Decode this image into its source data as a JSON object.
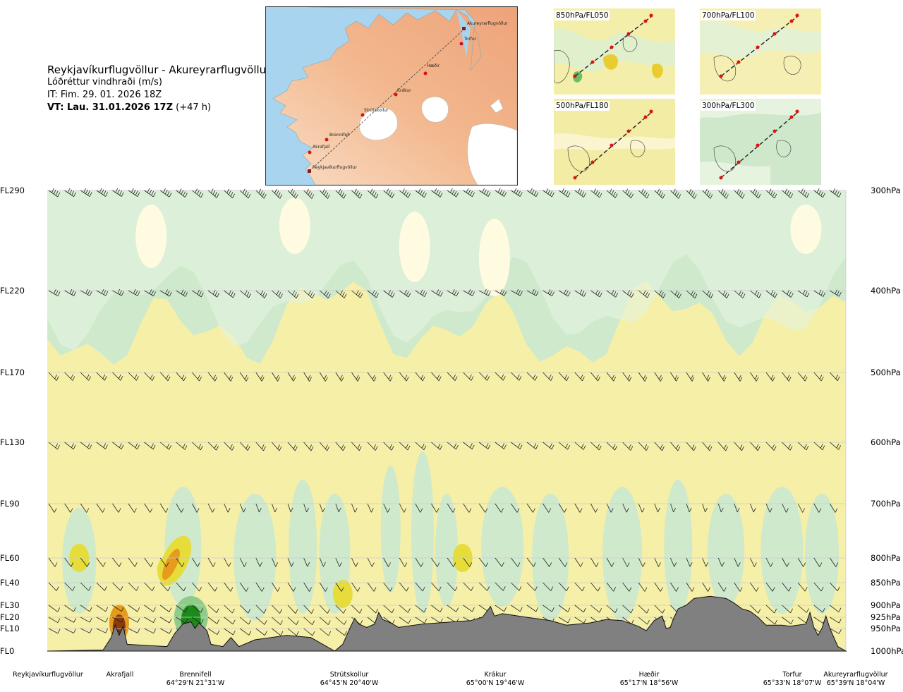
{
  "header": {
    "title": "Reykjavíkurflugvöllur - Akureyrarflugvöllur",
    "subtitle": "Lóðréttur vindhraði (m/s)",
    "init_time": "IT: Fim. 29. 01. 2026 18Z",
    "valid_time": "VT: Lau. 31.01.2026 17Z",
    "lead": "(+47 h)"
  },
  "map": {
    "route_labels": [
      "Akureyrarflugvöllur",
      "Torfur",
      "Hæðir",
      "Krákur",
      "Strútskollur",
      "Brennifell",
      "Akrafjall",
      "Reykjavíkurflugvöllur"
    ]
  },
  "mini_maps": [
    {
      "label": "850hPa/FL050"
    },
    {
      "label": "700hPa/FL100"
    },
    {
      "label": "500hPa/FL180"
    },
    {
      "label": "300hPa/FL300"
    }
  ],
  "colors": {
    "strong_down": "#8b3a0a",
    "moderate_down": "#e89a1a",
    "weak_down": "#e6dc3a",
    "near_zero": "#f5efa8",
    "neutral": "#fffbe0",
    "weak_up": "#e4f4e0",
    "moderate_up": "#cfe9cc",
    "strong_up": "#8fcc8a",
    "very_strong_up": "#1a8a1a",
    "terrain": "#808080"
  },
  "chart_data": {
    "type": "heatmap",
    "variable": "Lóðréttur vindhraði (m/s)",
    "levels": [
      {
        "fl": "FL290",
        "hpa": "300hPa"
      },
      {
        "fl": "FL220",
        "hpa": "400hPa"
      },
      {
        "fl": "FL170",
        "hpa": "500hPa"
      },
      {
        "fl": "FL130",
        "hpa": "600hPa"
      },
      {
        "fl": "FL90",
        "hpa": "700hPa"
      },
      {
        "fl": "FL60",
        "hpa": "800hPa"
      },
      {
        "fl": "FL40",
        "hpa": "850hPa"
      },
      {
        "fl": "FL30",
        "hpa": "900hPa"
      },
      {
        "fl": "FL20",
        "hpa": "925hPa"
      },
      {
        "fl": "FL10",
        "hpa": "950hPa"
      },
      {
        "fl": "FL0",
        "hpa": "1000hPa"
      }
    ],
    "stations": [
      {
        "name": "Reykjavíkurflugvöllur",
        "coord": ""
      },
      {
        "name": "Akrafjall",
        "coord": ""
      },
      {
        "name": "Brennifell",
        "coord": "64°29'N 21°31'W"
      },
      {
        "name": "Strútskollur",
        "coord": "64°45'N 20°40'W"
      },
      {
        "name": "Krákur",
        "coord": "65°00'N 19°46'W"
      },
      {
        "name": "Hæðir",
        "coord": "65°17'N 18°56'W"
      },
      {
        "name": "Torfur",
        "coord": "65°33'N 18°07'W"
      },
      {
        "name": "Akureyrarflugvöllur",
        "coord": "65°39'N 18°04'W"
      }
    ],
    "terrain_profile_ft": [
      [
        0,
        0
      ],
      [
        0.07,
        50
      ],
      [
        0.08,
        600
      ],
      [
        0.085,
        1300
      ],
      [
        0.09,
        700
      ],
      [
        0.095,
        1200
      ],
      [
        0.1,
        300
      ],
      [
        0.15,
        200
      ],
      [
        0.16,
        800
      ],
      [
        0.17,
        1400
      ],
      [
        0.18,
        1600
      ],
      [
        0.185,
        1000
      ],
      [
        0.19,
        1500
      ],
      [
        0.2,
        900
      ],
      [
        0.205,
        300
      ],
      [
        0.22,
        200
      ],
      [
        0.23,
        600
      ],
      [
        0.24,
        200
      ],
      [
        0.26,
        500
      ],
      [
        0.3,
        700
      ],
      [
        0.33,
        600
      ],
      [
        0.34,
        400
      ],
      [
        0.36,
        0
      ],
      [
        0.37,
        300
      ],
      [
        0.38,
        1200
      ],
      [
        0.385,
        1900
      ],
      [
        0.39,
        1400
      ],
      [
        0.4,
        1100
      ],
      [
        0.41,
        1400
      ],
      [
        0.415,
        2400
      ],
      [
        0.42,
        1800
      ],
      [
        0.43,
        1500
      ],
      [
        0.44,
        1100
      ],
      [
        0.45,
        1200
      ],
      [
        0.47,
        1400
      ],
      [
        0.49,
        1500
      ],
      [
        0.51,
        1600
      ],
      [
        0.53,
        1700
      ],
      [
        0.545,
        2000
      ],
      [
        0.555,
        2900
      ],
      [
        0.56,
        2100
      ],
      [
        0.57,
        2300
      ],
      [
        0.6,
        2000
      ],
      [
        0.63,
        1700
      ],
      [
        0.65,
        1300
      ],
      [
        0.68,
        1500
      ],
      [
        0.7,
        1800
      ],
      [
        0.72,
        1700
      ],
      [
        0.74,
        1200
      ],
      [
        0.75,
        900
      ],
      [
        0.76,
        1700
      ],
      [
        0.77,
        2100
      ],
      [
        0.775,
        1000
      ],
      [
        0.78,
        1100
      ],
      [
        0.785,
        2000
      ],
      [
        0.79,
        2700
      ],
      [
        0.8,
        3000
      ],
      [
        0.81,
        3300
      ],
      [
        0.83,
        3400
      ],
      [
        0.85,
        3300
      ],
      [
        0.86,
        3100
      ],
      [
        0.87,
        2700
      ],
      [
        0.88,
        2500
      ],
      [
        0.89,
        2000
      ],
      [
        0.9,
        1300
      ],
      [
        0.92,
        1300
      ],
      [
        0.93,
        1200
      ],
      [
        0.95,
        1400
      ],
      [
        0.955,
        2400
      ],
      [
        0.96,
        1100
      ],
      [
        0.965,
        700
      ],
      [
        0.97,
        1000
      ],
      [
        0.975,
        2100
      ],
      [
        0.98,
        1000
      ],
      [
        0.99,
        200
      ],
      [
        1,
        0
      ]
    ],
    "vertical_velocity_features": [
      {
        "x": 0.09,
        "fl": 15,
        "w": -1.5
      },
      {
        "x": 0.18,
        "fl": 20,
        "w": 1.5
      },
      {
        "x": 0.15,
        "fl": 50,
        "w": -0.6
      },
      {
        "x": 0.04,
        "fl": 60,
        "w": -0.4
      },
      {
        "x": 0.52,
        "fl": 60,
        "w": -0.4
      },
      {
        "x": 0.37,
        "fl": 35,
        "w": -0.3
      }
    ]
  }
}
